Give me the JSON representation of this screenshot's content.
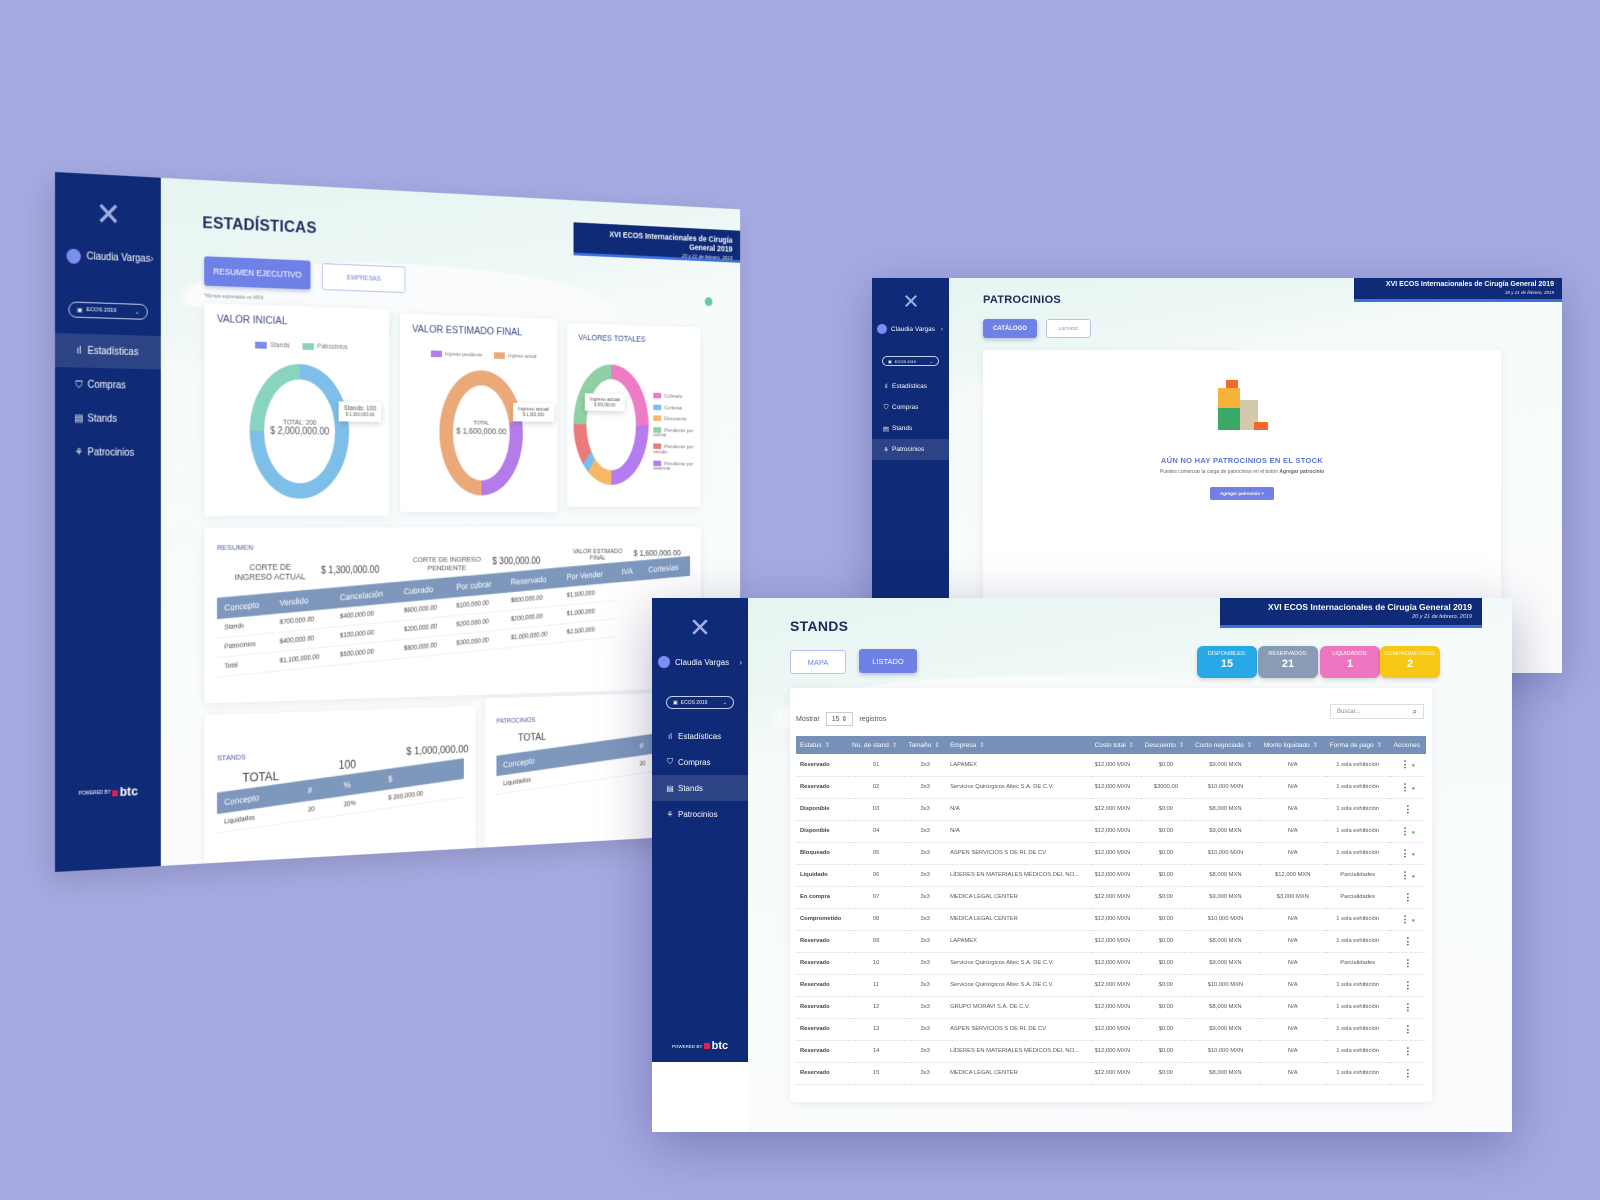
{
  "app": {
    "user_name": "Claudia Vargas",
    "event_select": "ECOS 2019",
    "event_banner": {
      "title": "XVI ECOS Internacionales de Cirugía General 2019",
      "date": "20 y 21 de febrero, 2019"
    },
    "nav": [
      {
        "label": "Estadísticas",
        "icon": "bar-chart-icon"
      },
      {
        "label": "Compras",
        "icon": "shopping-bag-icon"
      },
      {
        "label": "Stands",
        "icon": "stand-icon"
      },
      {
        "label": "Patrocinios",
        "icon": "sponsor-icon"
      }
    ],
    "powered_by": "POWERED BY",
    "brand": "btc",
    "colors": {
      "sidebar": "#0f2a76",
      "primary": "#6f80e6",
      "table_header": "#7690b8",
      "disponibles": "#29a8e8",
      "reservados": "#8a9bb5",
      "liquidados": "#ee76c0",
      "comprometidos": "#f6c714"
    }
  },
  "stats": {
    "title": "ESTADÍSTICAS",
    "tabs": [
      "RESUMEN EJECUTIVO",
      "EMPRESAS"
    ],
    "note": "*Montos expresados en MXN",
    "valor_inicial": {
      "title": "VALOR INICIAL",
      "legend": [
        "Stands",
        "Patrocinios"
      ],
      "center_label": "TOTAL: 200",
      "center_value": "$ 2,000,000.00",
      "tooltip_label": "Stands: 100",
      "tooltip_value": "$ 1,300,000.00"
    },
    "valor_estimado": {
      "title": "VALOR ESTIMADO FINAL",
      "legend": [
        "Ingreso pendiente",
        "Ingreso actual"
      ],
      "center_label": "TOTAL",
      "center_value": "$ 1,600,000.00",
      "tooltip_label": "Ingreso actual",
      "tooltip_value": "$ 1,300,000"
    },
    "valores_totales": {
      "title": "VALORES TOTALES",
      "legend": [
        "Cobrado",
        "Cortesía",
        "Descuento",
        "Pendiente por cobrar",
        "Pendiente por vender",
        "Pendiente por reservar"
      ],
      "tooltip_label": "Ingreso actual",
      "tooltip_value": "$ 300,000.00"
    },
    "resumen": {
      "label": "RESUMEN",
      "corte_actual_label": "CORTE DE INGRESO ACTUAL",
      "corte_actual_value": "$ 1,300,000.00",
      "corte_pendiente_label": "CORTE DE INGRESO PENDIENTE",
      "corte_pendiente_value": "$ 300,000.00",
      "valor_estimado_label": "VALOR ESTIMADO FINAL",
      "valor_estimado_value": "$ 1,600,000.00",
      "columns": [
        "Concepto",
        "Vendido",
        "Cancelación",
        "Cobrado",
        "Por cobrar",
        "Reservado",
        "Por Vender",
        "IVA",
        "Cortesías"
      ],
      "rows": [
        [
          "Stands",
          "$700,000.00",
          "$400,000.00",
          "$600,000.00",
          "$100,000.00",
          "$800,000.00",
          "$1,500,000"
        ],
        [
          "Patrocinios",
          "$400,000.00",
          "$100,000.00",
          "$200,000.00",
          "$200,000.00",
          "$200,000.00",
          "$1,000,000"
        ],
        [
          "Total",
          "$1,100,000.00",
          "$500,000.00",
          "$800,000.00",
          "$300,000.00",
          "$1,000,000.00",
          "$2,500,000"
        ]
      ]
    },
    "stands_card": {
      "label": "STANDS",
      "total_label": "TOTAL",
      "total_count": "100",
      "total_value": "$ 1,000,000.00",
      "columns": [
        "Concepto",
        "#",
        "%",
        "$"
      ],
      "rows": [
        [
          "Liquidados",
          "30",
          "30%",
          "$ 300,000.00"
        ]
      ]
    },
    "patro_card": {
      "label": "PATROCINIOS",
      "total_label": "TOTAL",
      "columns": [
        "Concepto",
        "#"
      ],
      "rows": [
        [
          "Liquidados",
          "30"
        ]
      ]
    }
  },
  "patrocinios": {
    "title": "PATROCINIOS",
    "tabs": [
      "CATÁLOGO",
      "LISTADO"
    ],
    "empty_title": "AÚN NO HAY PATROCINIOS EN EL STOCK",
    "empty_text": "Puedes comenzar la carga de patrocinios en el botón",
    "empty_text_bold": "Agregar patrocinio",
    "add_button": "Agregar patrocinio +"
  },
  "stands": {
    "title": "STANDS",
    "tabs": [
      "MAPA",
      "LISTADO"
    ],
    "counters": [
      {
        "label": "Disponibles:",
        "value": "15"
      },
      {
        "label": "Reservados:",
        "value": "21"
      },
      {
        "label": "Liquidados:",
        "value": "1"
      },
      {
        "label": "Comprometidos:",
        "value": "2"
      }
    ],
    "show_label": "Mostrar",
    "show_value": "15",
    "records_label": "registros",
    "search_placeholder": "Buscar...",
    "columns": [
      "Estatus",
      "No. de stand",
      "Tamaño",
      "Empresa",
      "Costo total",
      "Descuento",
      "Costo negociado",
      "Monto liquidado",
      "Forma de pago",
      "Acciones"
    ],
    "rows": [
      [
        "Reservado",
        "01",
        "3x3",
        "LAPAMEX",
        "$12,000 MXN",
        "$0.00",
        "$9,000 MXN",
        "N/A",
        "1 sola exhibición"
      ],
      [
        "Reservado",
        "02",
        "3x3",
        "Servicios Quirúrgicos Altec S.A. DE C.V.",
        "$12,000 MXN",
        "$3000.00",
        "$10,000 MXN",
        "N/A",
        "1 sola exhibición"
      ],
      [
        "Disponible",
        "03",
        "3x3",
        "N/A",
        "$12,000 MXN",
        "$0.00",
        "$8,000 MXN",
        "N/A",
        "1 sola exhibición"
      ],
      [
        "Disponible",
        "04",
        "3x3",
        "N/A",
        "$12,000 MXN",
        "$0.00",
        "$9,000 MXN",
        "N/A",
        "1 sola exhibición"
      ],
      [
        "Bloqueado",
        "05",
        "3x3",
        "ASPEN SERVICIOS S DE RL DE CV",
        "$12,000 MXN",
        "$0.00",
        "$10,000 MXN",
        "N/A",
        "1 sola exhibición"
      ],
      [
        "Liquidado",
        "06",
        "3x3",
        "LÍDERES EN MATERIALES MÉDICOS DEL NO...",
        "$12,000 MXN",
        "$0.00",
        "$8,000 MXN",
        "$12,000 MXN",
        "Parcialidades"
      ],
      [
        "En compra",
        "07",
        "3x3",
        "MEDICA LEGAL CENTER",
        "$12,000 MXN",
        "$0.00",
        "$9,000 MXN",
        "$3,000 MXN",
        "Parcialidades"
      ],
      [
        "Comprometido",
        "08",
        "3x3",
        "MEDICA LEGAL CENTER",
        "$12,000 MXN",
        "$0.00",
        "$10,000 MXN",
        "N/A",
        "1 sola exhibición"
      ],
      [
        "Reservado",
        "09",
        "3x3",
        "LAPAMEX",
        "$12,000 MXN",
        "$0.00",
        "$8,000 MXN",
        "N/A",
        "1 sola exhibición"
      ],
      [
        "Reservado",
        "10",
        "3x3",
        "Servicios Quirúrgicos Altec S.A. DE C.V.",
        "$12,000 MXN",
        "$0.00",
        "$9,000 MXN",
        "N/A",
        "Parcialidades"
      ],
      [
        "Reservado",
        "11",
        "3x3",
        "Servicios Quirúrgicos Altec S.A. DE C.V.",
        "$12,000 MXN",
        "$0.00",
        "$10,000 MXN",
        "N/A",
        "1 sola exhibición"
      ],
      [
        "Reservado",
        "12",
        "3x3",
        "GRUPO MORAVI S.A. DE C.V.",
        "$12,000 MXN",
        "$0.00",
        "$8,000 MXN",
        "N/A",
        "1 sola exhibición"
      ],
      [
        "Reservado",
        "13",
        "3x3",
        "ASPEN SERVICIOS S DE RL DE CV",
        "$12,000 MXN",
        "$0.00",
        "$9,000 MXN",
        "N/A",
        "1 sola exhibición"
      ],
      [
        "Reservado",
        "14",
        "3x3",
        "LÍDERES EN MATERIALES MÉDICOS DEL NO...",
        "$12,000 MXN",
        "$0.00",
        "$10,000 MXN",
        "N/A",
        "1 sola exhibición"
      ],
      [
        "Reservado",
        "15",
        "3x3",
        "MEDICA LEGAL CENTER",
        "$12,000 MXN",
        "$0.00",
        "$8,000 MXN",
        "N/A",
        "1 sola exhibición"
      ]
    ],
    "row_flags": [
      true,
      true,
      false,
      true,
      true,
      true,
      false,
      true,
      false,
      false,
      false,
      false,
      false,
      false,
      false
    ]
  }
}
